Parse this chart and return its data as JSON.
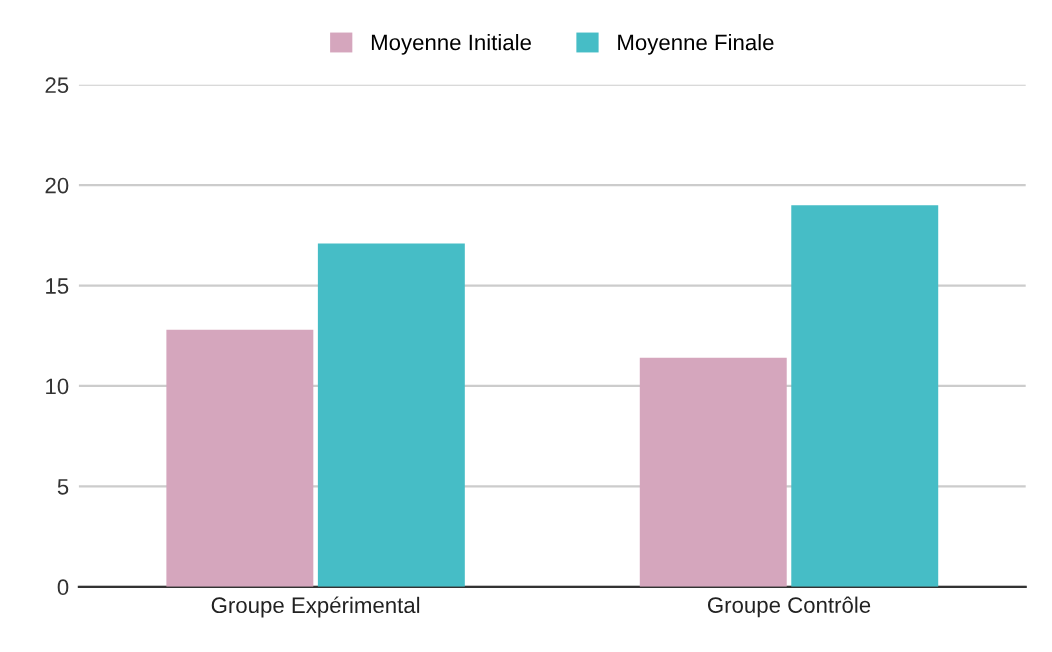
{
  "chart_data": {
    "type": "bar",
    "categories": [
      "Groupe Expérimental",
      "Groupe Contrôle"
    ],
    "series": [
      {
        "name": "Moyenne Initiale",
        "color": "#d5a6bd",
        "values": [
          12.8,
          11.4
        ]
      },
      {
        "name": "Moyenne Finale",
        "color": "#46bdc6",
        "values": [
          17.1,
          19.0
        ]
      }
    ],
    "ylim": [
      0,
      25
    ],
    "yticks": [
      0,
      5,
      10,
      15,
      20,
      25
    ],
    "grid": "y",
    "legend": "top"
  }
}
